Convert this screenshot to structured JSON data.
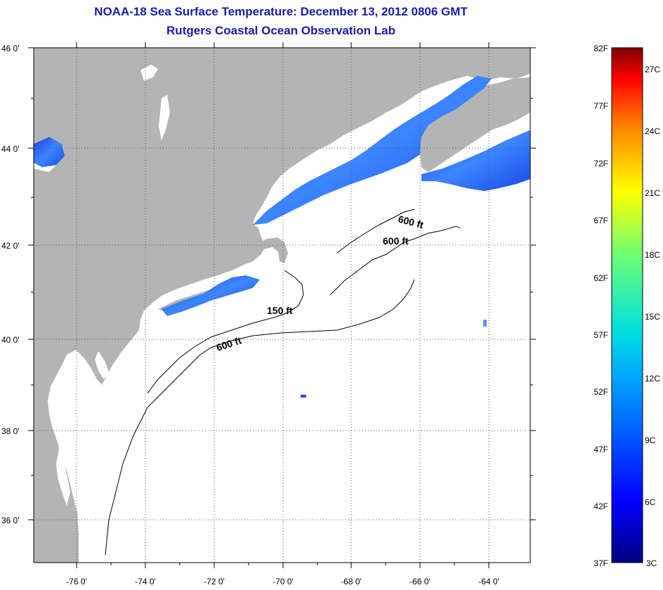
{
  "title": {
    "line1": "NOAA-18 Sea Surface Temperature:  December 13, 2012 0806 GMT",
    "line2": "Rutgers Coastal Ocean Observation Lab"
  },
  "map": {
    "lat_labels": [
      "46 0'",
      "44 0'",
      "42 0'",
      "40 0'",
      "38 0'",
      "36 0'"
    ],
    "lon_labels": [
      "-76 0'",
      "-74 0'",
      "-72 0'",
      "-70 0'",
      "-68 0'",
      "-66 0'",
      "-64 0'"
    ],
    "contour_labels": [
      "600 ft",
      "600 ft",
      "150 ft",
      "600 ft"
    ],
    "colors": {
      "land": "#b4b4b4",
      "ocean_nodata": "#ffffff",
      "cold_water": "#1f55e8"
    }
  },
  "colorbar": {
    "fahrenheit_labels": [
      "82F",
      "77F",
      "72F",
      "67F",
      "62F",
      "57F",
      "52F",
      "47F",
      "42F",
      "37F"
    ],
    "celsius_labels": [
      "27C",
      "24C",
      "21C",
      "18C",
      "15C",
      "12C",
      "9C",
      "6C",
      "3C"
    ]
  }
}
